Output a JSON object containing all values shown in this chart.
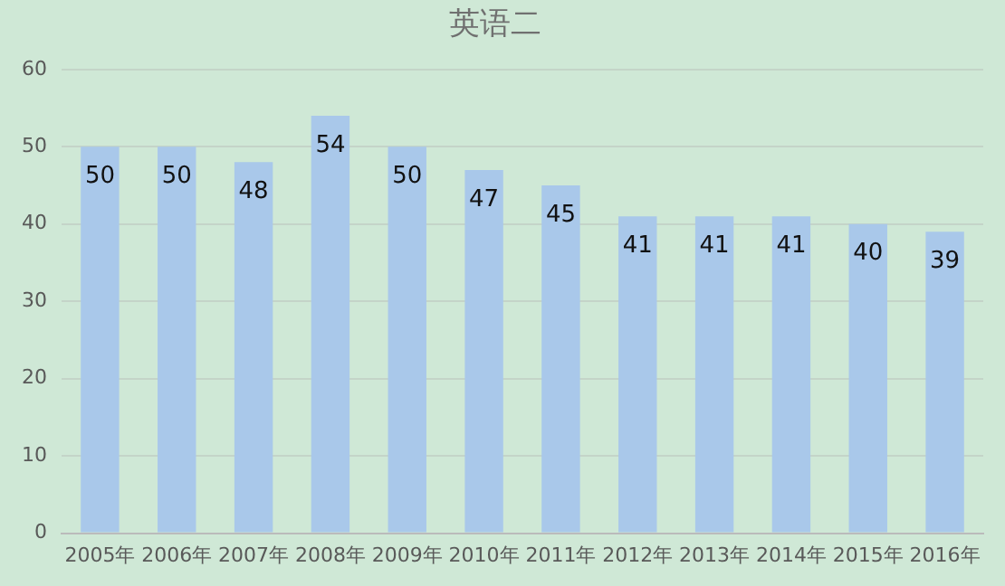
{
  "chart_data": {
    "type": "bar",
    "title": "英语二",
    "categories": [
      "2005年",
      "2006年",
      "2007年",
      "2008年",
      "2009年",
      "2010年",
      "2011年",
      "2012年",
      "2013年",
      "2014年",
      "2015年",
      "2016年"
    ],
    "values": [
      50,
      50,
      48,
      54,
      50,
      47,
      45,
      41,
      41,
      41,
      40,
      39
    ],
    "color": "#a9c8ea",
    "ylim": [
      0,
      60
    ],
    "yticks": [
      0,
      10,
      20,
      30,
      40,
      50,
      60
    ],
    "grid": "y",
    "data_labels": true
  }
}
